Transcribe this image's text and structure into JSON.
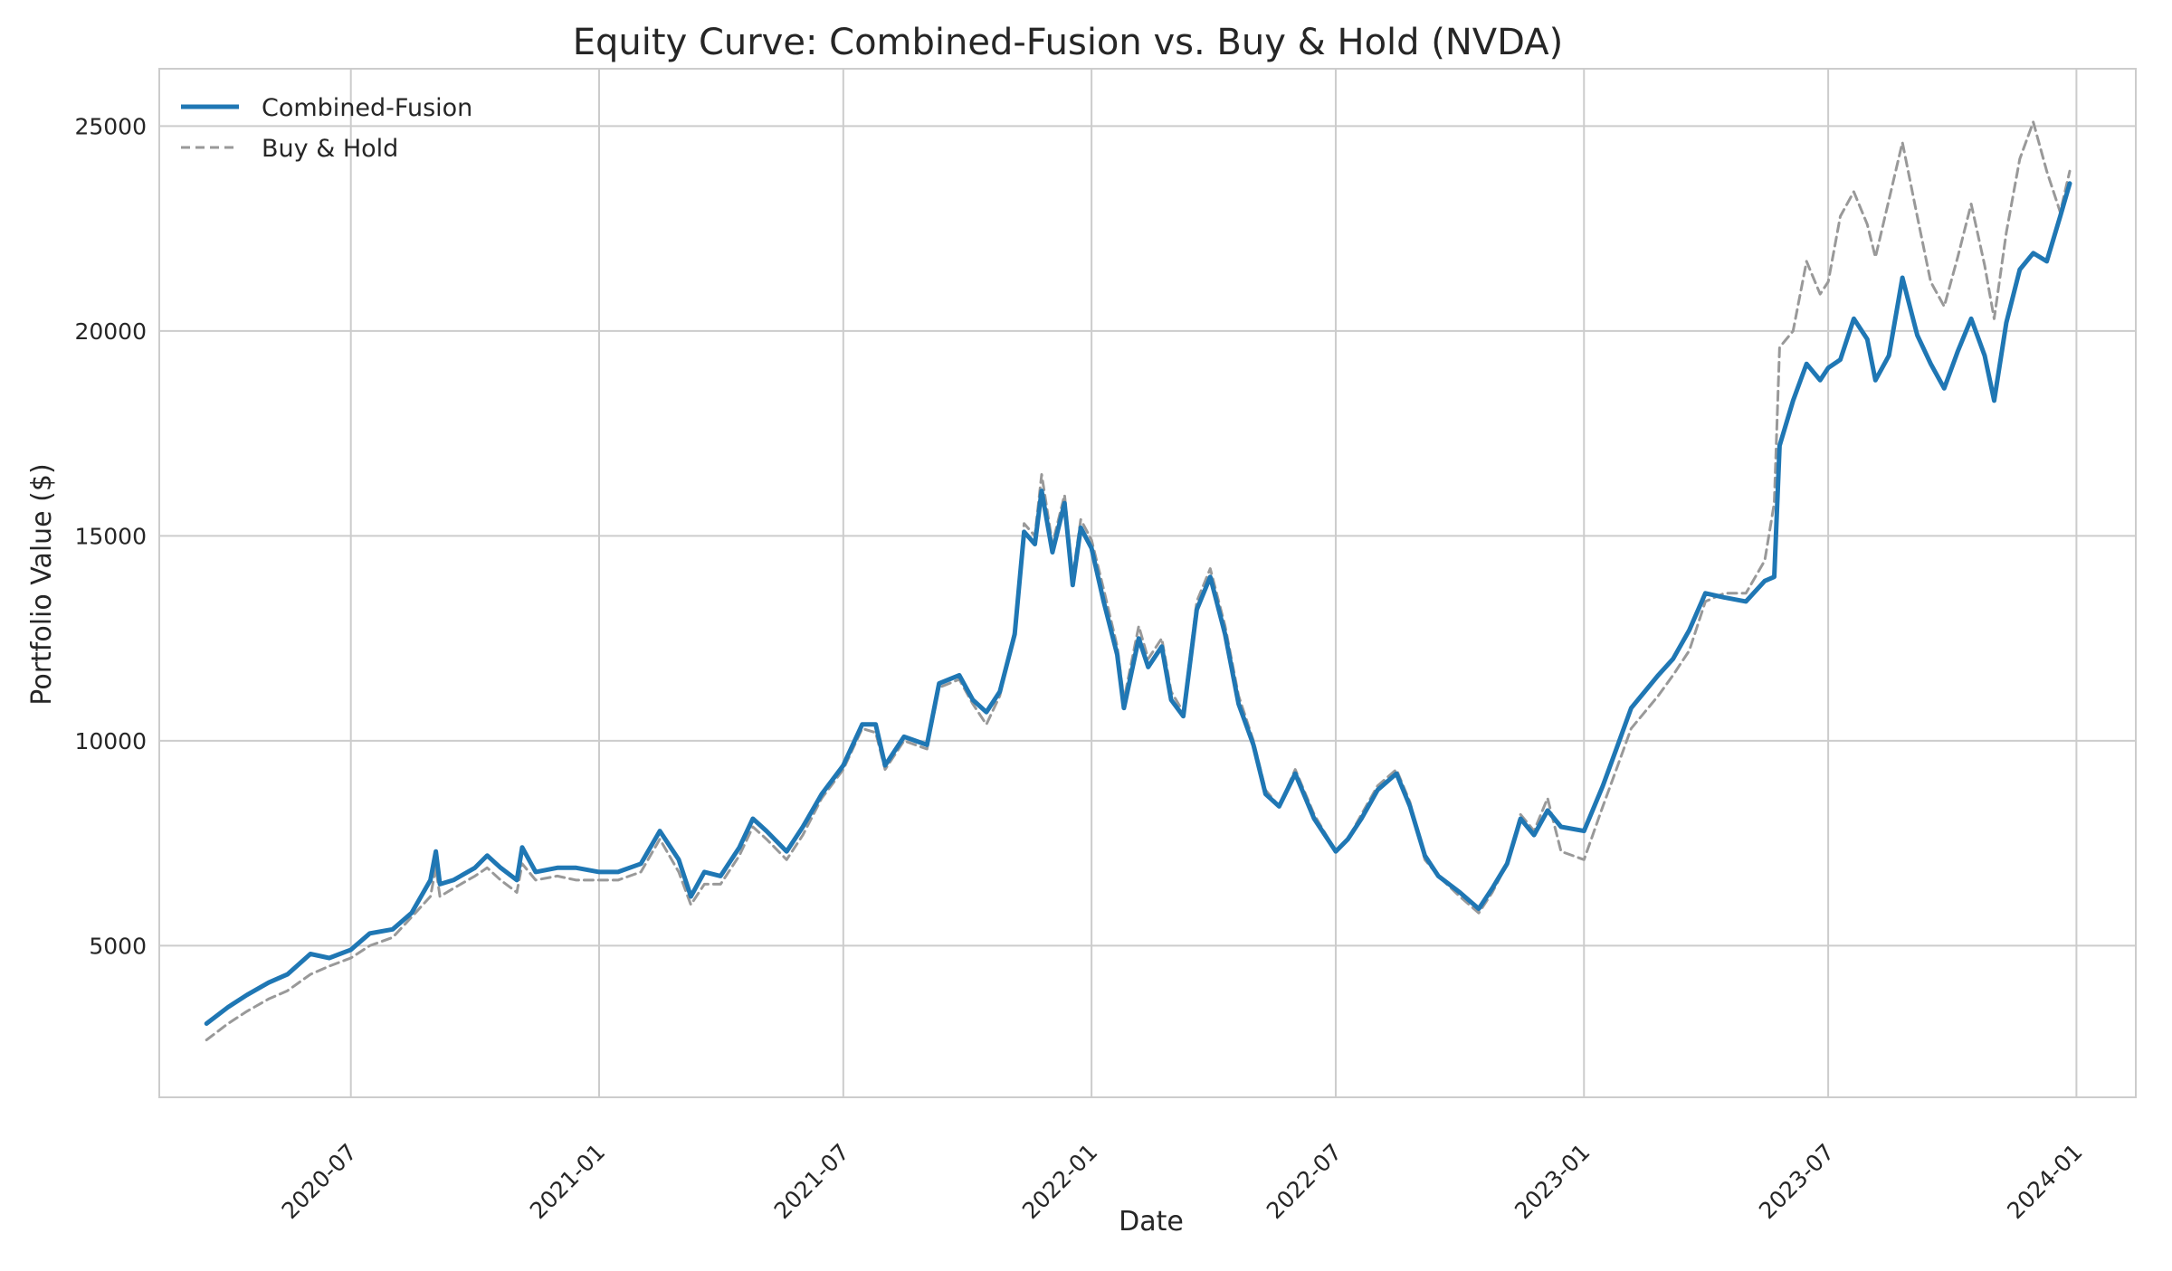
{
  "chart_data": {
    "type": "line",
    "title": "Equity Curve: Combined-Fusion vs. Buy & Hold (NVDA)",
    "xlabel": "Date",
    "ylabel": "Portfolio Value ($)",
    "x_range": [
      "2020-02-10",
      "2024-02-14"
    ],
    "ylim": [
      1300,
      26400
    ],
    "x_ticks": [
      "2020-07-01",
      "2021-01-01",
      "2021-07-01",
      "2022-01-01",
      "2022-07-01",
      "2023-01-01",
      "2023-07-01",
      "2024-01-01"
    ],
    "x_tick_labels": [
      "2020-07",
      "2021-01",
      "2021-07",
      "2022-01",
      "2022-07",
      "2023-01",
      "2023-07",
      "2024-01"
    ],
    "y_ticks": [
      5000,
      10000,
      15000,
      20000,
      25000
    ],
    "y_tick_labels": [
      "5000",
      "10000",
      "15000",
      "20000",
      "25000"
    ],
    "grid": true,
    "legend_position": "top-left",
    "series": [
      {
        "name": "Combined-Fusion",
        "color": "#1f77b4",
        "style": "solid",
        "points": [
          [
            "2020-03-16",
            3100
          ],
          [
            "2020-04-01",
            3500
          ],
          [
            "2020-04-15",
            3800
          ],
          [
            "2020-05-01",
            4100
          ],
          [
            "2020-05-15",
            4300
          ],
          [
            "2020-06-01",
            4800
          ],
          [
            "2020-06-15",
            4700
          ],
          [
            "2020-07-01",
            4900
          ],
          [
            "2020-07-15",
            5300
          ],
          [
            "2020-08-01",
            5400
          ],
          [
            "2020-08-15",
            5800
          ],
          [
            "2020-08-29",
            6600
          ],
          [
            "2020-09-02",
            7300
          ],
          [
            "2020-09-05",
            6500
          ],
          [
            "2020-09-15",
            6600
          ],
          [
            "2020-10-01",
            6900
          ],
          [
            "2020-10-10",
            7200
          ],
          [
            "2020-10-20",
            6900
          ],
          [
            "2020-11-01",
            6600
          ],
          [
            "2020-11-05",
            7400
          ],
          [
            "2020-11-15",
            6800
          ],
          [
            "2020-12-01",
            6900
          ],
          [
            "2020-12-15",
            6900
          ],
          [
            "2021-01-01",
            6800
          ],
          [
            "2021-01-15",
            6800
          ],
          [
            "2021-02-01",
            7000
          ],
          [
            "2021-02-15",
            7800
          ],
          [
            "2021-03-01",
            7100
          ],
          [
            "2021-03-10",
            6200
          ],
          [
            "2021-03-20",
            6800
          ],
          [
            "2021-04-01",
            6700
          ],
          [
            "2021-04-15",
            7400
          ],
          [
            "2021-04-25",
            8100
          ],
          [
            "2021-05-05",
            7800
          ],
          [
            "2021-05-20",
            7300
          ],
          [
            "2021-06-01",
            7900
          ],
          [
            "2021-06-15",
            8700
          ],
          [
            "2021-07-01",
            9400
          ],
          [
            "2021-07-15",
            10400
          ],
          [
            "2021-07-25",
            10400
          ],
          [
            "2021-08-01",
            9400
          ],
          [
            "2021-08-15",
            10100
          ],
          [
            "2021-09-01",
            9900
          ],
          [
            "2021-09-10",
            11400
          ],
          [
            "2021-09-25",
            11600
          ],
          [
            "2021-10-05",
            11000
          ],
          [
            "2021-10-15",
            10700
          ],
          [
            "2021-10-25",
            11200
          ],
          [
            "2021-11-05",
            12600
          ],
          [
            "2021-11-12",
            15100
          ],
          [
            "2021-11-20",
            14800
          ],
          [
            "2021-11-25",
            16100
          ],
          [
            "2021-12-03",
            14600
          ],
          [
            "2021-12-12",
            15800
          ],
          [
            "2021-12-18",
            13800
          ],
          [
            "2021-12-24",
            15200
          ],
          [
            "2022-01-01",
            14700
          ],
          [
            "2022-01-10",
            13400
          ],
          [
            "2022-01-20",
            12100
          ],
          [
            "2022-01-25",
            10800
          ],
          [
            "2022-02-05",
            12500
          ],
          [
            "2022-02-12",
            11800
          ],
          [
            "2022-02-22",
            12300
          ],
          [
            "2022-03-01",
            11000
          ],
          [
            "2022-03-10",
            10600
          ],
          [
            "2022-03-20",
            13200
          ],
          [
            "2022-03-30",
            14000
          ],
          [
            "2022-04-10",
            12600
          ],
          [
            "2022-04-20",
            10900
          ],
          [
            "2022-05-01",
            9900
          ],
          [
            "2022-05-10",
            8700
          ],
          [
            "2022-05-20",
            8400
          ],
          [
            "2022-06-01",
            9200
          ],
          [
            "2022-06-15",
            8100
          ],
          [
            "2022-07-01",
            7300
          ],
          [
            "2022-07-10",
            7600
          ],
          [
            "2022-07-20",
            8100
          ],
          [
            "2022-08-01",
            8800
          ],
          [
            "2022-08-15",
            9200
          ],
          [
            "2022-08-25",
            8400
          ],
          [
            "2022-09-05",
            7200
          ],
          [
            "2022-09-15",
            6700
          ],
          [
            "2022-10-01",
            6300
          ],
          [
            "2022-10-15",
            5900
          ],
          [
            "2022-10-25",
            6400
          ],
          [
            "2022-11-05",
            7000
          ],
          [
            "2022-11-15",
            8100
          ],
          [
            "2022-11-25",
            7700
          ],
          [
            "2022-12-05",
            8300
          ],
          [
            "2022-12-15",
            7900
          ],
          [
            "2023-01-01",
            7800
          ],
          [
            "2023-01-15",
            8900
          ],
          [
            "2023-01-25",
            9800
          ],
          [
            "2023-02-05",
            10800
          ],
          [
            "2023-02-15",
            11200
          ],
          [
            "2023-02-25",
            11600
          ],
          [
            "2023-03-08",
            12000
          ],
          [
            "2023-03-20",
            12700
          ],
          [
            "2023-04-01",
            13600
          ],
          [
            "2023-04-15",
            13500
          ],
          [
            "2023-05-01",
            13400
          ],
          [
            "2023-05-15",
            13900
          ],
          [
            "2023-05-22",
            14000
          ],
          [
            "2023-05-26",
            17200
          ],
          [
            "2023-06-05",
            18300
          ],
          [
            "2023-06-15",
            19200
          ],
          [
            "2023-06-25",
            18800
          ],
          [
            "2023-07-01",
            19100
          ],
          [
            "2023-07-10",
            19300
          ],
          [
            "2023-07-20",
            20300
          ],
          [
            "2023-07-30",
            19800
          ],
          [
            "2023-08-05",
            18800
          ],
          [
            "2023-08-15",
            19400
          ],
          [
            "2023-08-25",
            21300
          ],
          [
            "2023-09-05",
            19900
          ],
          [
            "2023-09-15",
            19200
          ],
          [
            "2023-09-25",
            18600
          ],
          [
            "2023-10-05",
            19500
          ],
          [
            "2023-10-15",
            20300
          ],
          [
            "2023-10-25",
            19400
          ],
          [
            "2023-11-01",
            18300
          ],
          [
            "2023-11-10",
            20200
          ],
          [
            "2023-11-20",
            21500
          ],
          [
            "2023-11-30",
            21900
          ],
          [
            "2023-12-10",
            21700
          ],
          [
            "2023-12-20",
            22800
          ],
          [
            "2023-12-27",
            23600
          ]
        ]
      },
      {
        "name": "Buy & Hold",
        "color": "#999999",
        "style": "dashed",
        "points": [
          [
            "2020-03-16",
            2700
          ],
          [
            "2020-04-01",
            3100
          ],
          [
            "2020-04-15",
            3400
          ],
          [
            "2020-05-01",
            3700
          ],
          [
            "2020-05-15",
            3900
          ],
          [
            "2020-06-01",
            4300
          ],
          [
            "2020-06-15",
            4500
          ],
          [
            "2020-07-01",
            4700
          ],
          [
            "2020-07-15",
            5000
          ],
          [
            "2020-08-01",
            5200
          ],
          [
            "2020-08-15",
            5700
          ],
          [
            "2020-08-29",
            6200
          ],
          [
            "2020-09-02",
            6900
          ],
          [
            "2020-09-05",
            6200
          ],
          [
            "2020-09-15",
            6400
          ],
          [
            "2020-10-01",
            6700
          ],
          [
            "2020-10-10",
            6900
          ],
          [
            "2020-10-20",
            6600
          ],
          [
            "2020-11-01",
            6300
          ],
          [
            "2020-11-05",
            7000
          ],
          [
            "2020-11-15",
            6600
          ],
          [
            "2020-12-01",
            6700
          ],
          [
            "2020-12-15",
            6600
          ],
          [
            "2021-01-01",
            6600
          ],
          [
            "2021-01-15",
            6600
          ],
          [
            "2021-02-01",
            6800
          ],
          [
            "2021-02-15",
            7600
          ],
          [
            "2021-03-01",
            6800
          ],
          [
            "2021-03-10",
            6000
          ],
          [
            "2021-03-20",
            6500
          ],
          [
            "2021-04-01",
            6500
          ],
          [
            "2021-04-15",
            7200
          ],
          [
            "2021-04-25",
            7900
          ],
          [
            "2021-05-05",
            7600
          ],
          [
            "2021-05-20",
            7100
          ],
          [
            "2021-06-01",
            7700
          ],
          [
            "2021-06-15",
            8600
          ],
          [
            "2021-07-01",
            9300
          ],
          [
            "2021-07-15",
            10300
          ],
          [
            "2021-07-25",
            10200
          ],
          [
            "2021-08-01",
            9300
          ],
          [
            "2021-08-15",
            10000
          ],
          [
            "2021-09-01",
            9800
          ],
          [
            "2021-09-10",
            11300
          ],
          [
            "2021-09-25",
            11500
          ],
          [
            "2021-10-05",
            10900
          ],
          [
            "2021-10-15",
            10400
          ],
          [
            "2021-10-25",
            11100
          ],
          [
            "2021-11-05",
            12700
          ],
          [
            "2021-11-12",
            15300
          ],
          [
            "2021-11-20",
            15000
          ],
          [
            "2021-11-25",
            16500
          ],
          [
            "2021-12-03",
            14800
          ],
          [
            "2021-12-12",
            16000
          ],
          [
            "2021-12-18",
            14000
          ],
          [
            "2021-12-24",
            15400
          ],
          [
            "2022-01-01",
            14900
          ],
          [
            "2022-01-10",
            13700
          ],
          [
            "2022-01-20",
            12300
          ],
          [
            "2022-01-25",
            11000
          ],
          [
            "2022-02-05",
            12800
          ],
          [
            "2022-02-12",
            12000
          ],
          [
            "2022-02-22",
            12500
          ],
          [
            "2022-03-01",
            11200
          ],
          [
            "2022-03-10",
            10700
          ],
          [
            "2022-03-20",
            13400
          ],
          [
            "2022-03-30",
            14200
          ],
          [
            "2022-04-10",
            12800
          ],
          [
            "2022-04-20",
            11100
          ],
          [
            "2022-05-01",
            10000
          ],
          [
            "2022-05-10",
            8800
          ],
          [
            "2022-05-20",
            8400
          ],
          [
            "2022-06-01",
            9300
          ],
          [
            "2022-06-15",
            8200
          ],
          [
            "2022-07-01",
            7300
          ],
          [
            "2022-07-10",
            7600
          ],
          [
            "2022-07-20",
            8200
          ],
          [
            "2022-08-01",
            8900
          ],
          [
            "2022-08-15",
            9300
          ],
          [
            "2022-08-25",
            8500
          ],
          [
            "2022-09-05",
            7100
          ],
          [
            "2022-09-15",
            6700
          ],
          [
            "2022-10-01",
            6200
          ],
          [
            "2022-10-15",
            5800
          ],
          [
            "2022-10-25",
            6300
          ],
          [
            "2022-11-05",
            7000
          ],
          [
            "2022-11-15",
            8200
          ],
          [
            "2022-11-25",
            7800
          ],
          [
            "2022-12-05",
            8600
          ],
          [
            "2022-12-15",
            7300
          ],
          [
            "2023-01-01",
            7100
          ],
          [
            "2023-01-15",
            8400
          ],
          [
            "2023-01-25",
            9300
          ],
          [
            "2023-02-05",
            10300
          ],
          [
            "2023-02-15",
            10700
          ],
          [
            "2023-02-25",
            11100
          ],
          [
            "2023-03-08",
            11600
          ],
          [
            "2023-03-20",
            12200
          ],
          [
            "2023-04-01",
            13400
          ],
          [
            "2023-04-15",
            13600
          ],
          [
            "2023-05-01",
            13600
          ],
          [
            "2023-05-15",
            14400
          ],
          [
            "2023-05-22",
            15800
          ],
          [
            "2023-05-26",
            19600
          ],
          [
            "2023-06-05",
            20000
          ],
          [
            "2023-06-15",
            21700
          ],
          [
            "2023-06-25",
            20900
          ],
          [
            "2023-07-01",
            21200
          ],
          [
            "2023-07-10",
            22800
          ],
          [
            "2023-07-20",
            23400
          ],
          [
            "2023-07-30",
            22600
          ],
          [
            "2023-08-05",
            21800
          ],
          [
            "2023-08-15",
            23200
          ],
          [
            "2023-08-25",
            24600
          ],
          [
            "2023-09-05",
            22800
          ],
          [
            "2023-09-15",
            21200
          ],
          [
            "2023-09-25",
            20600
          ],
          [
            "2023-10-05",
            21800
          ],
          [
            "2023-10-15",
            23100
          ],
          [
            "2023-10-25",
            21600
          ],
          [
            "2023-11-01",
            20300
          ],
          [
            "2023-11-10",
            22400
          ],
          [
            "2023-11-20",
            24200
          ],
          [
            "2023-11-30",
            25100
          ],
          [
            "2023-12-10",
            23900
          ],
          [
            "2023-12-20",
            22900
          ],
          [
            "2023-12-27",
            23900
          ]
        ]
      }
    ]
  }
}
